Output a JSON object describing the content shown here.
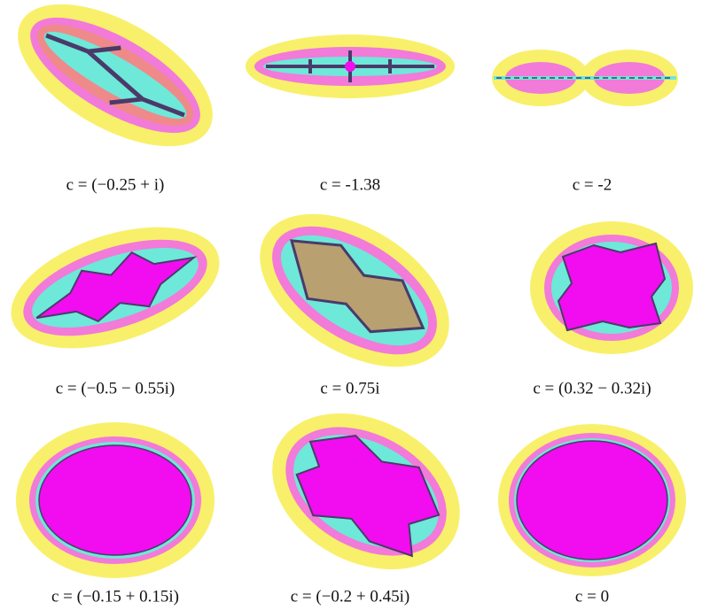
{
  "figure": {
    "panels": [
      {
        "caption": "c = (−0.25 + i)"
      },
      {
        "caption": "c = -1.38"
      },
      {
        "caption": "c = -2"
      },
      {
        "caption": "c = (−0.5 − 0.55i)"
      },
      {
        "caption": "c = 0.75i"
      },
      {
        "caption": "c = (0.32 − 0.32i)"
      },
      {
        "caption": "c = (−0.15 + 0.15i)"
      },
      {
        "caption": "c = (−0.2 + 0.45i)"
      },
      {
        "caption": "c = 0"
      }
    ]
  }
}
